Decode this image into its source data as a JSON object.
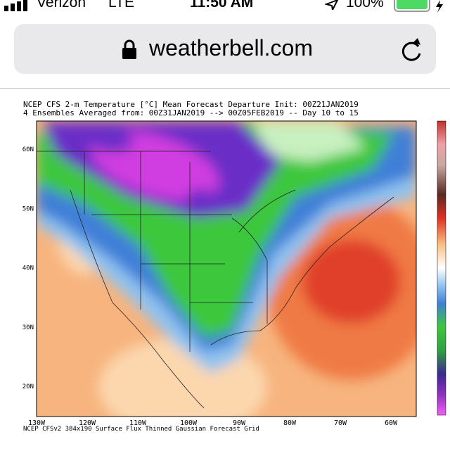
{
  "status_bar": {
    "carrier": "Verizon",
    "network": "LTE",
    "time": "11:50 AM",
    "battery": "100%"
  },
  "address_bar": {
    "url": "weatherbell.com"
  },
  "map": {
    "title_line1": "NCEP CFS 2-m Temperature [°C] Mean Forecast Departure Init: 00Z21JAN2019",
    "title_line2": "4 Ensembles Averaged from: 00Z31JAN2019 --> 00Z05FEB2019 -- Day 10 to 15",
    "lat_labels": [
      "60N",
      "50N",
      "40N",
      "30N",
      "20N"
    ],
    "lon_labels": [
      "130W",
      "120W",
      "110W",
      "100W",
      "90W",
      "80W",
      "70W",
      "60W"
    ],
    "footer": "NCEP CFSv2 384x190 Surface Flux Thinned Gaussian Forecast Grid"
  }
}
